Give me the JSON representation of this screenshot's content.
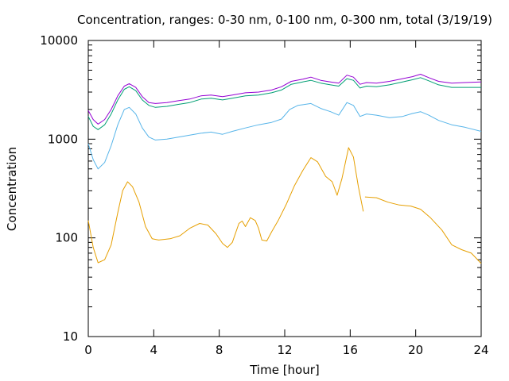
{
  "chart_data": {
    "type": "line",
    "title": "Concentration, ranges: 0-30 nm, 0-100 nm, 0-300 nm, total (3/19/19)",
    "xlabel": "Time [hour]",
    "ylabel": "Concentration",
    "xlim": [
      0,
      24
    ],
    "ylim": [
      10,
      10000
    ],
    "yscale": "log",
    "grid": false,
    "xticks": [
      0,
      4,
      8,
      12,
      16,
      20,
      24
    ],
    "xtick_labels": [
      "0",
      "4",
      "8",
      "12",
      "16",
      "20",
      "24"
    ],
    "yticks": [
      10,
      100,
      1000,
      10000
    ],
    "ytick_labels": [
      "10",
      "100",
      "1000",
      "10000"
    ],
    "series": [
      {
        "color": "#e69f00",
        "points": [
          [
            0,
            150
          ],
          [
            0.3,
            80
          ],
          [
            0.6,
            56
          ],
          [
            1,
            60
          ],
          [
            1.4,
            85
          ],
          [
            1.8,
            180
          ],
          [
            2.1,
            300
          ],
          [
            2.4,
            370
          ],
          [
            2.7,
            330
          ],
          [
            3.1,
            230
          ],
          [
            3.5,
            130
          ],
          [
            3.9,
            98
          ],
          [
            4.3,
            95
          ],
          [
            5,
            98
          ],
          [
            5.6,
            105
          ],
          [
            6.2,
            125
          ],
          [
            6.8,
            140
          ],
          [
            7.3,
            135
          ],
          [
            7.8,
            110
          ],
          [
            8.2,
            88
          ],
          [
            8.5,
            80
          ],
          [
            8.8,
            90
          ],
          [
            9.2,
            140
          ],
          [
            9.4,
            148
          ],
          [
            9.6,
            130
          ],
          [
            9.9,
            160
          ],
          [
            10.2,
            150
          ],
          [
            10.4,
            125
          ],
          [
            10.6,
            95
          ],
          [
            10.9,
            93
          ],
          [
            11.2,
            115
          ],
          [
            11.6,
            150
          ],
          [
            12.1,
            220
          ],
          [
            12.6,
            340
          ],
          [
            13.1,
            480
          ],
          [
            13.6,
            650
          ],
          [
            14,
            590
          ],
          [
            14.5,
            420
          ],
          [
            14.9,
            370
          ],
          [
            15.2,
            270
          ],
          [
            15.5,
            400
          ],
          [
            15.9,
            820
          ],
          [
            16.2,
            660
          ],
          [
            16.5,
            330
          ],
          [
            16.8,
            185
          ]
        ]
      },
      {
        "color": "#e69f00",
        "points": [
          [
            16.9,
            260
          ],
          [
            17.6,
            255
          ],
          [
            18.3,
            230
          ],
          [
            19,
            215
          ],
          [
            19.7,
            210
          ],
          [
            20.3,
            195
          ],
          [
            20.9,
            160
          ],
          [
            21.6,
            120
          ],
          [
            22.2,
            85
          ],
          [
            22.8,
            76
          ],
          [
            23.4,
            70
          ],
          [
            24,
            55
          ]
        ]
      },
      {
        "color": "#56b4e9",
        "points": [
          [
            0,
            900
          ],
          [
            0.3,
            620
          ],
          [
            0.6,
            500
          ],
          [
            1,
            580
          ],
          [
            1.4,
            860
          ],
          [
            1.8,
            1400
          ],
          [
            2.2,
            2000
          ],
          [
            2.5,
            2100
          ],
          [
            2.9,
            1800
          ],
          [
            3.3,
            1300
          ],
          [
            3.7,
            1050
          ],
          [
            4.1,
            980
          ],
          [
            4.8,
            1000
          ],
          [
            5.5,
            1050
          ],
          [
            6.2,
            1100
          ],
          [
            6.9,
            1150
          ],
          [
            7.5,
            1180
          ],
          [
            8.2,
            1120
          ],
          [
            8.8,
            1200
          ],
          [
            9.6,
            1300
          ],
          [
            10.4,
            1400
          ],
          [
            11.2,
            1480
          ],
          [
            11.8,
            1600
          ],
          [
            12.3,
            2000
          ],
          [
            12.8,
            2200
          ],
          [
            13.6,
            2300
          ],
          [
            14.2,
            2050
          ],
          [
            14.8,
            1900
          ],
          [
            15.3,
            1750
          ],
          [
            15.8,
            2350
          ],
          [
            16.2,
            2200
          ],
          [
            16.6,
            1700
          ],
          [
            17,
            1800
          ],
          [
            17.6,
            1750
          ],
          [
            18.4,
            1650
          ],
          [
            19.2,
            1700
          ],
          [
            19.8,
            1820
          ],
          [
            20.3,
            1900
          ],
          [
            20.8,
            1750
          ],
          [
            21.4,
            1550
          ],
          [
            22.2,
            1400
          ],
          [
            23,
            1320
          ],
          [
            24,
            1200
          ]
        ]
      },
      {
        "color": "#009e73",
        "points": [
          [
            0,
            1700
          ],
          [
            0.3,
            1350
          ],
          [
            0.6,
            1250
          ],
          [
            1,
            1400
          ],
          [
            1.4,
            1800
          ],
          [
            1.8,
            2500
          ],
          [
            2.2,
            3200
          ],
          [
            2.5,
            3400
          ],
          [
            2.9,
            3100
          ],
          [
            3.3,
            2500
          ],
          [
            3.7,
            2200
          ],
          [
            4.1,
            2100
          ],
          [
            4.8,
            2150
          ],
          [
            5.5,
            2250
          ],
          [
            6.2,
            2350
          ],
          [
            6.9,
            2550
          ],
          [
            7.5,
            2600
          ],
          [
            8.2,
            2500
          ],
          [
            8.8,
            2600
          ],
          [
            9.6,
            2750
          ],
          [
            10.4,
            2800
          ],
          [
            11.2,
            2950
          ],
          [
            11.8,
            3150
          ],
          [
            12.4,
            3600
          ],
          [
            13.1,
            3800
          ],
          [
            13.6,
            3950
          ],
          [
            14.2,
            3700
          ],
          [
            14.8,
            3550
          ],
          [
            15.3,
            3450
          ],
          [
            15.8,
            4100
          ],
          [
            16.2,
            3950
          ],
          [
            16.6,
            3300
          ],
          [
            17,
            3450
          ],
          [
            17.6,
            3400
          ],
          [
            18.4,
            3550
          ],
          [
            19.2,
            3800
          ],
          [
            19.8,
            4000
          ],
          [
            20.3,
            4200
          ],
          [
            20.8,
            3900
          ],
          [
            21.4,
            3550
          ],
          [
            22.2,
            3350
          ],
          [
            23,
            3350
          ],
          [
            24,
            3350
          ]
        ]
      },
      {
        "color": "#9400d3",
        "points": [
          [
            0,
            1950
          ],
          [
            0.3,
            1580
          ],
          [
            0.6,
            1420
          ],
          [
            1,
            1580
          ],
          [
            1.4,
            2000
          ],
          [
            1.8,
            2750
          ],
          [
            2.2,
            3450
          ],
          [
            2.5,
            3650
          ],
          [
            2.9,
            3350
          ],
          [
            3.3,
            2700
          ],
          [
            3.7,
            2350
          ],
          [
            4.1,
            2300
          ],
          [
            4.8,
            2350
          ],
          [
            5.5,
            2450
          ],
          [
            6.2,
            2550
          ],
          [
            6.9,
            2750
          ],
          [
            7.5,
            2800
          ],
          [
            8.2,
            2700
          ],
          [
            8.8,
            2800
          ],
          [
            9.6,
            2950
          ],
          [
            10.4,
            3000
          ],
          [
            11.2,
            3150
          ],
          [
            11.8,
            3400
          ],
          [
            12.4,
            3850
          ],
          [
            13.1,
            4050
          ],
          [
            13.6,
            4250
          ],
          [
            14.2,
            3950
          ],
          [
            14.8,
            3800
          ],
          [
            15.3,
            3700
          ],
          [
            15.8,
            4450
          ],
          [
            16.2,
            4250
          ],
          [
            16.6,
            3600
          ],
          [
            17,
            3750
          ],
          [
            17.6,
            3700
          ],
          [
            18.4,
            3850
          ],
          [
            19.2,
            4100
          ],
          [
            19.8,
            4300
          ],
          [
            20.3,
            4550
          ],
          [
            20.8,
            4200
          ],
          [
            21.4,
            3850
          ],
          [
            22.2,
            3700
          ],
          [
            23,
            3750
          ],
          [
            24,
            3800
          ]
        ]
      }
    ]
  }
}
